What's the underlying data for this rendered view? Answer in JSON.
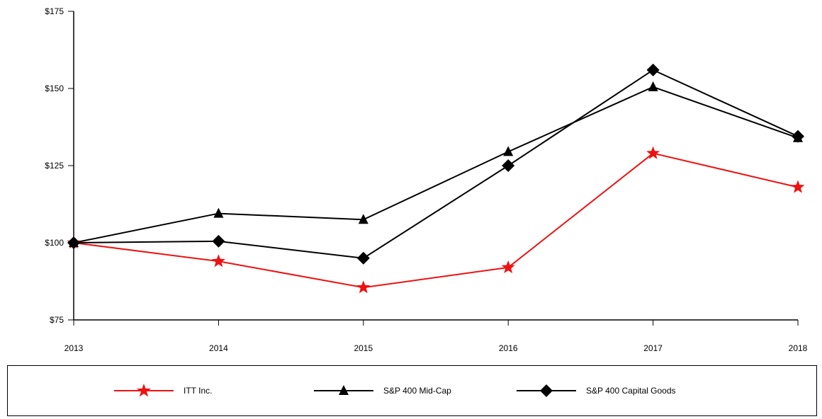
{
  "chart_data": {
    "type": "line",
    "title": "",
    "xlabel": "",
    "ylabel": "",
    "x": [
      "2013",
      "2014",
      "2015",
      "2016",
      "2017",
      "2018"
    ],
    "ylim": [
      75,
      175
    ],
    "yticks": [
      75,
      100,
      125,
      150,
      175
    ],
    "ytick_labels": [
      "$75",
      "$100",
      "$125",
      "$150",
      "$175"
    ],
    "grid": false,
    "legend_position": "bottom",
    "series": [
      {
        "name": "ITT Inc.",
        "values": [
          100,
          94,
          85.5,
          92,
          129,
          118
        ],
        "color": "#ee1111",
        "marker": "star"
      },
      {
        "name": "S&P 400 Mid-Cap",
        "values": [
          100,
          109.5,
          107.5,
          129.5,
          150.5,
          134
        ],
        "color": "#000000",
        "marker": "triangle"
      },
      {
        "name": "S&P 400 Capital Goods",
        "values": [
          100,
          100.5,
          95,
          125,
          156,
          134.5
        ],
        "color": "#000000",
        "marker": "diamond"
      }
    ]
  }
}
